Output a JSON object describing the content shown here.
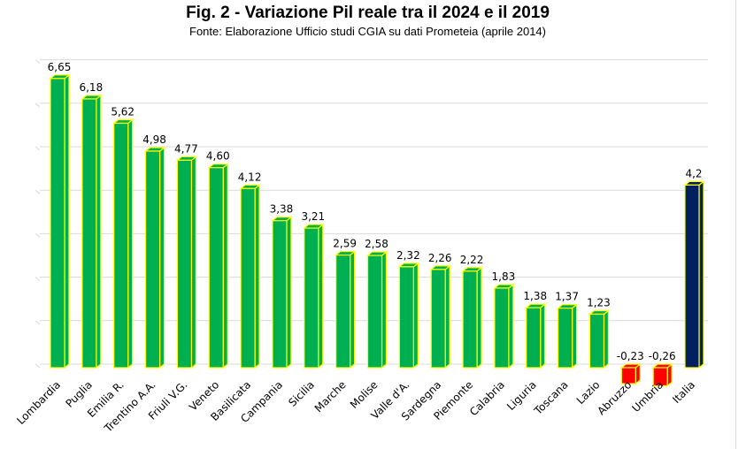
{
  "title": "Fig. 2 - Variazione Pil reale tra il 2024 e il 2019",
  "subtitle": "Fonte: Elaborazione Ufficio studi CGIA su dati Prometeia (aprile 2014)",
  "colors": {
    "positive": "#00b050",
    "negative": "#ff0000",
    "italia": "#002060",
    "outline": "#ffff00",
    "grid": "#d9d9d9"
  },
  "chart_data": {
    "type": "bar",
    "title": "Fig. 2 - Variazione Pil reale tra il 2024 e il 2019",
    "subtitle": "Fonte: Elaborazione Ufficio studi CGIA su dati Prometeia (aprile 2014)",
    "xlabel": "",
    "ylabel": "",
    "ylim": [
      -0.3,
      6.8
    ],
    "grid": true,
    "categories": [
      "Lombardia",
      "Puglia",
      "Emilia R.",
      "Trentino A.A.",
      "Friuli V.G.",
      "Veneto",
      "Basilicata",
      "Campania",
      "Sicilia",
      "Marche",
      "Molise",
      "Valle d'A.",
      "Sardegna",
      "Piemonte",
      "Calabria",
      "Liguria",
      "Toscana",
      "Lazio",
      "Abruzzo",
      "Umbria",
      "Italia"
    ],
    "values": [
      6.65,
      6.18,
      5.62,
      4.98,
      4.77,
      4.6,
      4.12,
      3.38,
      3.21,
      2.59,
      2.58,
      2.32,
      2.26,
      2.22,
      1.83,
      1.38,
      1.37,
      1.23,
      -0.23,
      -0.26,
      4.2
    ],
    "value_labels": [
      "6,65",
      "6,18",
      "5,62",
      "4,98",
      "4,77",
      "4,60",
      "4,12",
      "3,38",
      "3,21",
      "2,59",
      "2,58",
      "2,32",
      "2,26",
      "2,22",
      "1,83",
      "1,38",
      "1,37",
      "1,23",
      "-0,23",
      "-0,26",
      "4,2"
    ]
  }
}
